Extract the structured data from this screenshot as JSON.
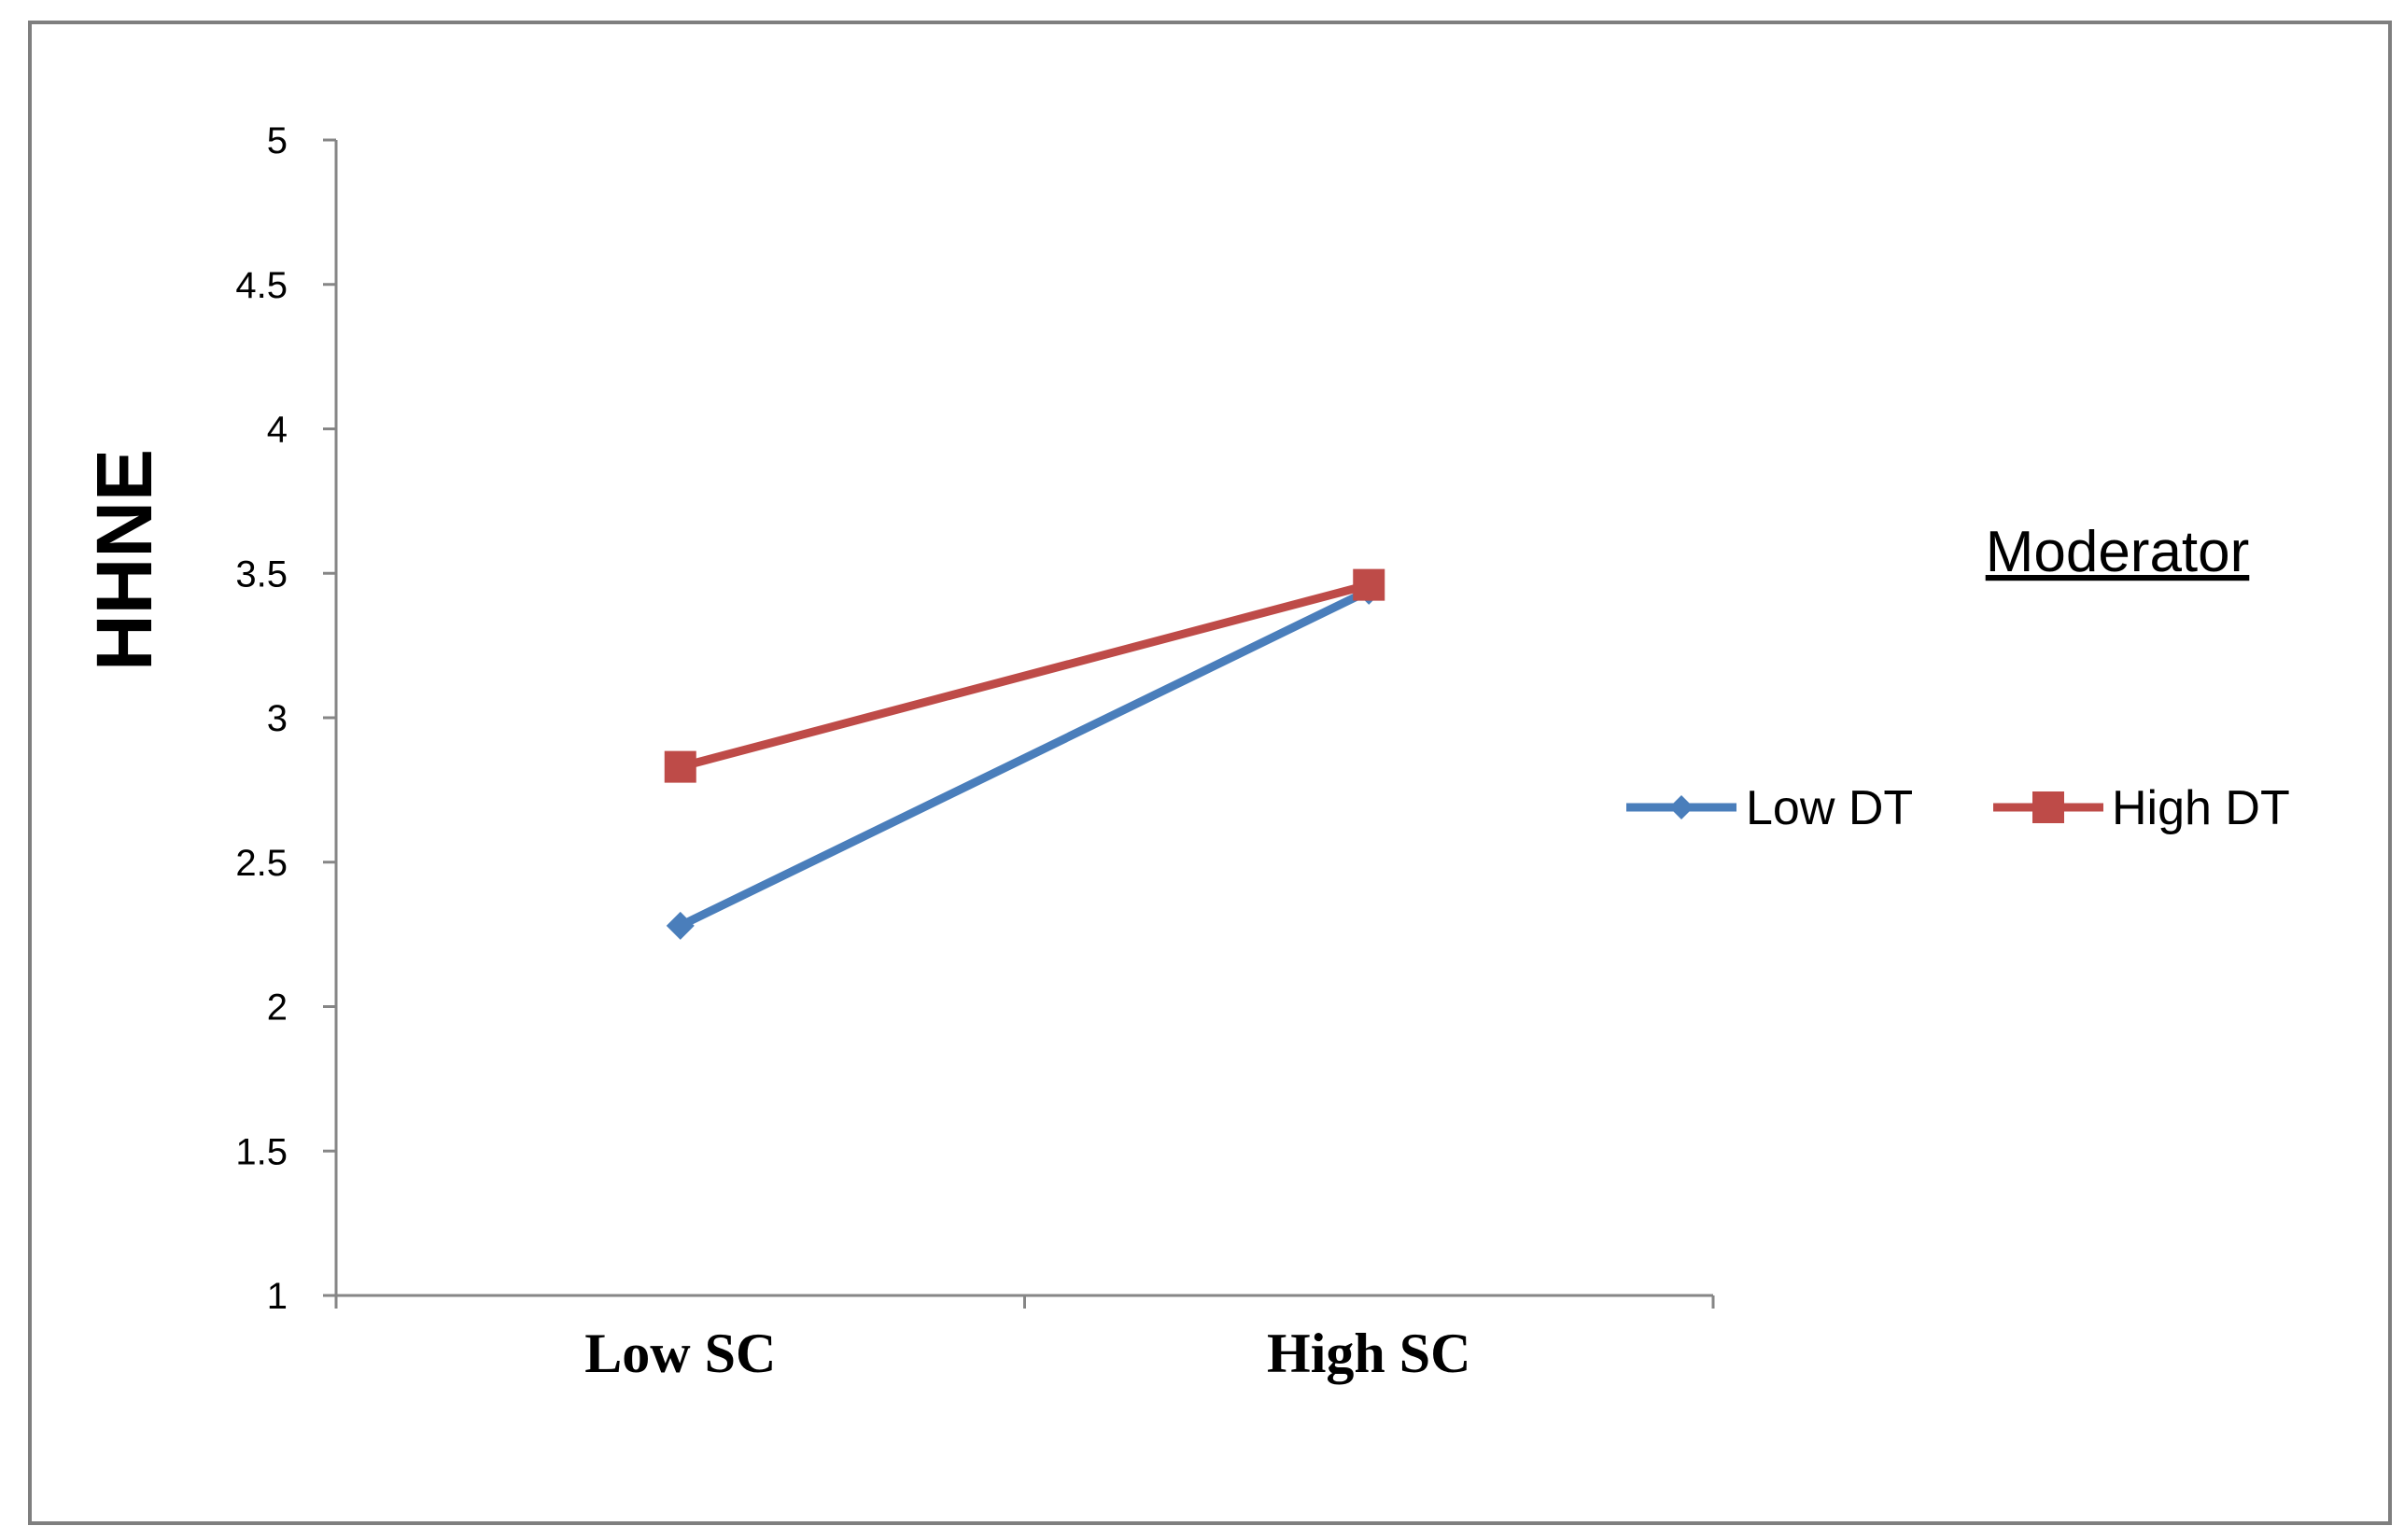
{
  "chart_data": {
    "type": "line",
    "categories": [
      "Low SC",
      "High SC"
    ],
    "series": [
      {
        "name": "Low DT",
        "values": [
          2.28,
          3.44
        ],
        "color": "#4a7ebb",
        "marker": "diamond"
      },
      {
        "name": "High DT",
        "values": [
          2.83,
          3.46
        ],
        "color": "#be4b48",
        "marker": "square"
      }
    ],
    "title": "",
    "xlabel": "",
    "ylabel": "HHNE",
    "ylim": [
      1,
      5
    ],
    "yticks": [
      "1",
      "1.5",
      "2",
      "2.5",
      "3",
      "3.5",
      "4",
      "4.5",
      "5"
    ],
    "legend_title": "Moderator",
    "legend_position": "right"
  }
}
